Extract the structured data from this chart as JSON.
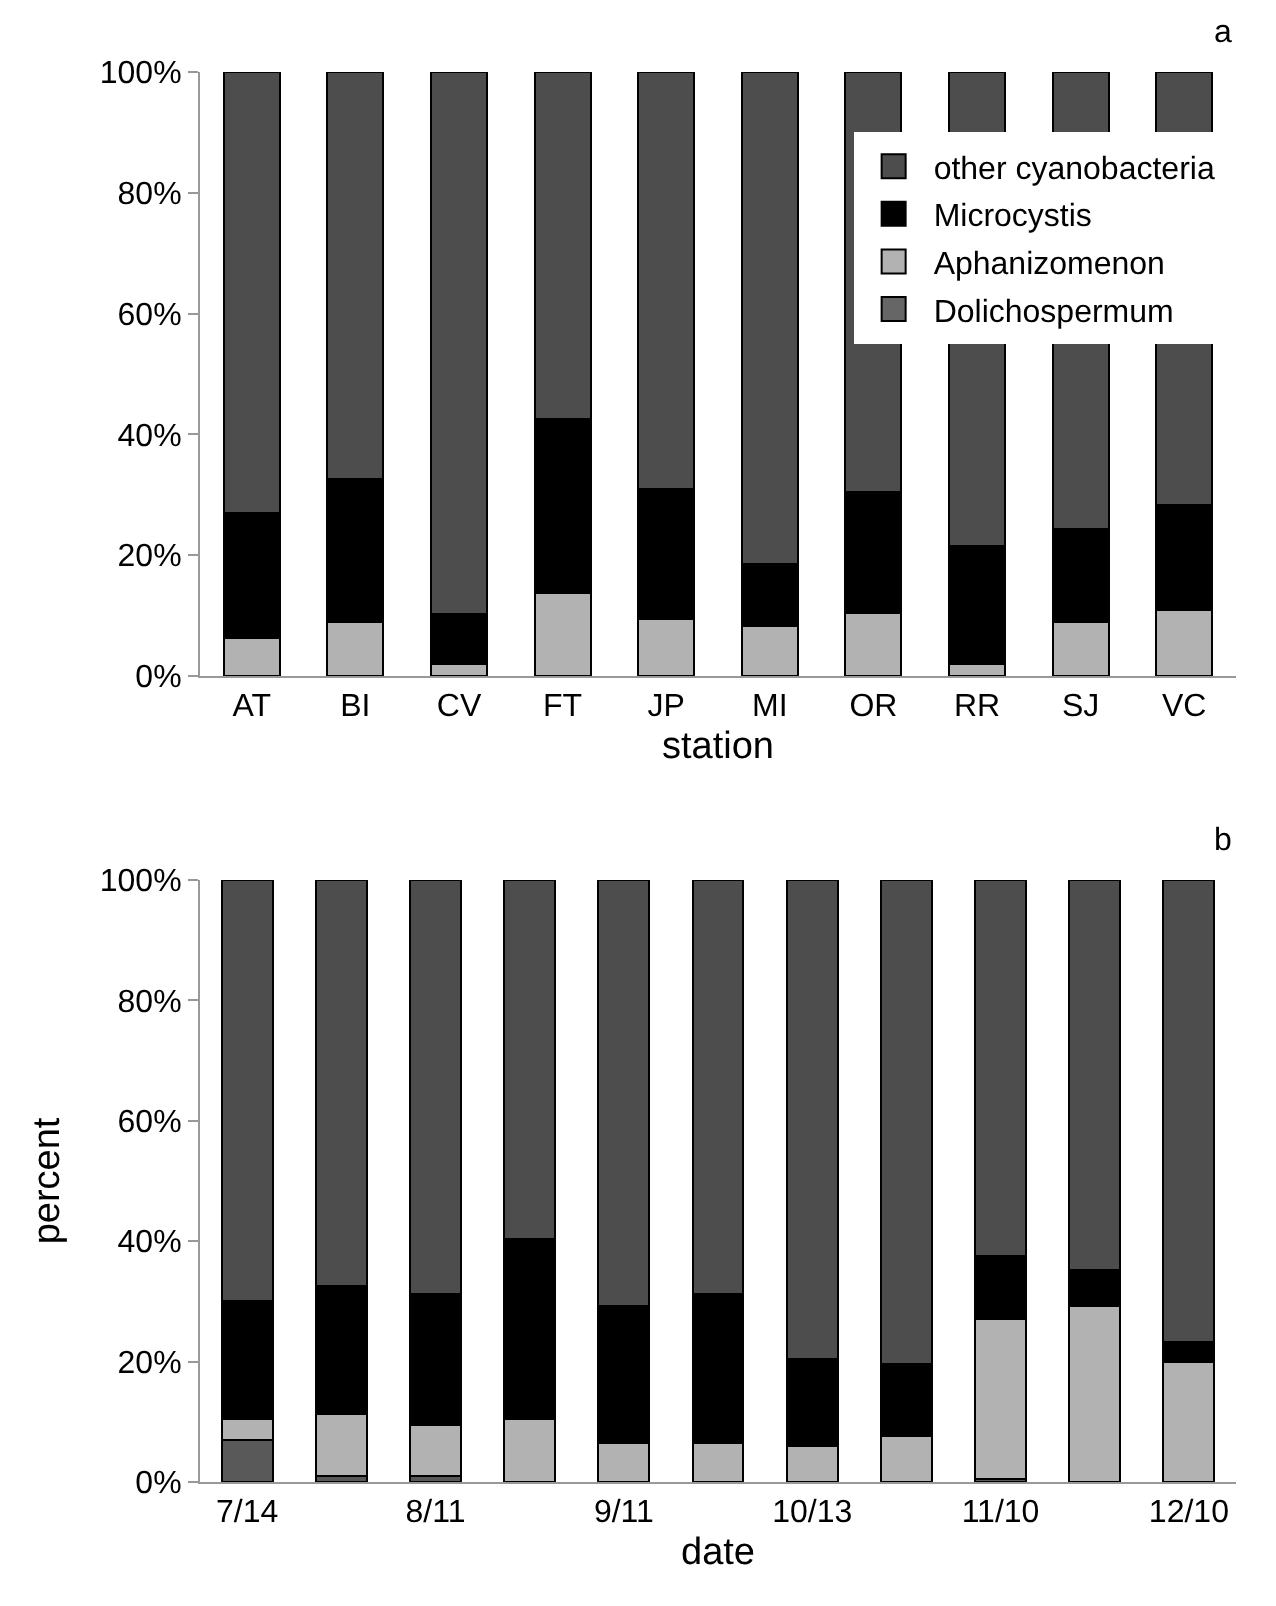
{
  "chart_data": [
    {
      "type": "bar",
      "stacked": true,
      "annotations": [
        "a"
      ],
      "xlabel": "station",
      "categories": [
        "AT",
        "BI",
        "CV",
        "FT",
        "JP",
        "MI",
        "OR",
        "RR",
        "SJ",
        "VC"
      ],
      "ylim": [
        0,
        100
      ],
      "yticks": [
        {
          "value": 0,
          "label": "0%"
        },
        {
          "value": 20,
          "label": "20%"
        },
        {
          "value": 40,
          "label": "40%"
        },
        {
          "value": 60,
          "label": "60%"
        },
        {
          "value": 80,
          "label": "80%"
        },
        {
          "value": 100,
          "label": "100%"
        }
      ],
      "legend": "top right",
      "series": [
        {
          "name": "Dolichospermum",
          "color": "#666666",
          "values": [
            0,
            0,
            0,
            0,
            0,
            0,
            0,
            0,
            0,
            0
          ]
        },
        {
          "name": "Aphanizomenon",
          "color": "#b2b2b2",
          "values": [
            6.3,
            9,
            2,
            13.8,
            9.5,
            8.2,
            10.5,
            2,
            9,
            11
          ]
        },
        {
          "name": "Microcystis",
          "color": "#000000",
          "values": [
            20.7,
            23.7,
            8.2,
            28.7,
            21.5,
            10.3,
            20,
            19.6,
            15.3,
            17.3
          ]
        },
        {
          "name": "other cyanobacteria",
          "color": "#4d4d4d",
          "values": [
            73,
            67.3,
            89.8,
            57.5,
            69,
            81.5,
            69.5,
            78.4,
            75.7,
            71.7
          ]
        }
      ]
    },
    {
      "type": "bar",
      "stacked": true,
      "annotations": [
        "b"
      ],
      "xlabel": "date",
      "ylabel": "percent",
      "categories": [
        "7/14",
        null,
        "8/11",
        null,
        "9/11",
        null,
        "10/13",
        null,
        "11/10",
        null,
        "12/10"
      ],
      "ylim": [
        0,
        100
      ],
      "yticks": [
        {
          "value": 0,
          "label": "0%"
        },
        {
          "value": 20,
          "label": "20%"
        },
        {
          "value": 40,
          "label": "40%"
        },
        {
          "value": 60,
          "label": "60%"
        },
        {
          "value": 80,
          "label": "80%"
        },
        {
          "value": 100,
          "label": "100%"
        }
      ],
      "series": [
        {
          "color": "#595959",
          "values": [
            7,
            1,
            1,
            0,
            0,
            0,
            0,
            0,
            0.5,
            0,
            0
          ]
        },
        {
          "color": "#b2b2b2",
          "values": [
            3.4,
            10.3,
            8.5,
            10.4,
            6.4,
            6.4,
            6,
            7.7,
            26.6,
            29.2,
            20
          ]
        },
        {
          "color": "#000000",
          "values": [
            19.6,
            21.2,
            21.8,
            29.9,
            22.8,
            24.9,
            14.5,
            11.9,
            10.5,
            6.1,
            3.2
          ]
        },
        {
          "color": "#4d4d4d",
          "values": [
            70,
            67.5,
            68.7,
            59.7,
            70.8,
            68.7,
            79.5,
            80.4,
            62.4,
            64.7,
            76.8
          ]
        }
      ]
    }
  ]
}
